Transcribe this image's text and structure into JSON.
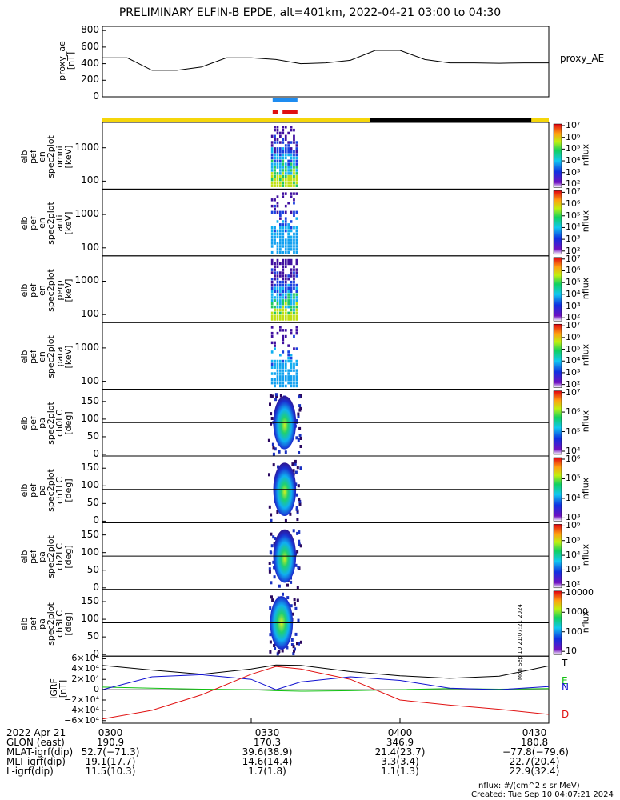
{
  "title": "PRELIMINARY ELFIN-B EPDE, alt=401km, 2022-04-21 03:00 to 04:30",
  "colors": {
    "yellow": "#f5d60a",
    "black": "#000000",
    "blue_bar": "#1e8cf0",
    "red_bar": "#e01010",
    "bx": "#000000",
    "by": "#1010d0",
    "bz": "#10c010",
    "bd": "#e01010"
  },
  "ae_panel": {
    "ylabel": "proxy_ae\n[nT]",
    "yticks": [
      "800",
      "600",
      "400",
      "200",
      "0"
    ],
    "series_label": "proxy_AE"
  },
  "spec_panels": [
    {
      "ylabel": "elb\npef\nen\nspec2plot\nomni\n[keV]",
      "yticks": [
        "1000",
        "100"
      ],
      "cb_ticks": [
        "10⁷",
        "10⁶",
        "10⁵",
        "10⁴",
        "10³",
        "10²"
      ],
      "cb_label": "nflux"
    },
    {
      "ylabel": "elb\npef\nen\nspec2plot\nanti\n[keV]",
      "yticks": [
        "1000",
        "100"
      ],
      "cb_ticks": [
        "10⁷",
        "10⁶",
        "10⁵",
        "10⁴",
        "10³",
        "10²"
      ],
      "cb_label": "nflux"
    },
    {
      "ylabel": "elb\npef\nen\nspec2plot\nperp\n[keV]",
      "yticks": [
        "1000",
        "100"
      ],
      "cb_ticks": [
        "10⁷",
        "10⁶",
        "10⁵",
        "10⁴",
        "10³",
        "10²"
      ],
      "cb_label": "nflux"
    },
    {
      "ylabel": "elb\npef\nen\nspec2plot\npara\n[keV]",
      "yticks": [
        "1000",
        "100"
      ],
      "cb_ticks": [
        "10⁷",
        "10⁶",
        "10⁵",
        "10⁴",
        "10³",
        "10²"
      ],
      "cb_label": "nflux"
    },
    {
      "ylabel": "elb\npef\npa\nspec2plot\nch0LC\n[deg]",
      "yticks": [
        "150",
        "100",
        "50",
        "0"
      ],
      "cb_ticks": [
        "10⁷",
        "10⁶",
        "10⁵",
        "10⁴"
      ],
      "cb_label": "nflux"
    },
    {
      "ylabel": "elb\npef\npa\nspec2plot\nch1LC\n[deg]",
      "yticks": [
        "150",
        "100",
        "50",
        "0"
      ],
      "cb_ticks": [
        "10⁶",
        "10⁵",
        "10⁴",
        "10³"
      ],
      "cb_label": "nflux"
    },
    {
      "ylabel": "elb\npef\npa\nspec2plot\nch2LC\n[deg]",
      "yticks": [
        "150",
        "100",
        "50",
        "0"
      ],
      "cb_ticks": [
        "10⁶",
        "10⁵",
        "10⁴",
        "10³",
        "10²"
      ],
      "cb_label": "nflux"
    },
    {
      "ylabel": "elb\npef\npa\nspec2plot\nch3LC\n[deg]",
      "yticks": [
        "150",
        "100",
        "50",
        "0"
      ],
      "cb_ticks": [
        "10000",
        "1000",
        "100",
        "10"
      ],
      "cb_label": "nflux"
    }
  ],
  "igrf_panel": {
    "ylabel": "IGRF\n[nT]",
    "yticks": [
      "6×10⁴",
      "4×10⁴",
      "2×10⁴",
      "0",
      "−2×10⁴",
      "−4×10⁴",
      "−6×10⁴"
    ],
    "legend": [
      "T",
      "E",
      "N",
      "D"
    ],
    "side_text": "Mon Sep 10 21:07:21 2024"
  },
  "time_ticks": [
    "0300",
    "0330",
    "0400",
    "0430"
  ],
  "ephemeris": [
    {
      "label": "2022 Apr 21",
      "values": [
        "0300",
        "0330",
        "0400",
        "0430"
      ]
    },
    {
      "label": "GLON (east)",
      "values": [
        "190.9",
        "170.3",
        "346.9",
        "180.8"
      ]
    },
    {
      "label": "MLAT-igrf(dip)",
      "values": [
        "52.7(−71.3)",
        "39.6(38.9)",
        "21.4(23.7)",
        "−77.8(−79.6)"
      ]
    },
    {
      "label": "MLT-igrf(dip)",
      "values": [
        "19.1(17.7)",
        "14.6(14.4)",
        "3.3(3.4)",
        "22.7(20.4)"
      ]
    },
    {
      "label": "L-igrf(dip)",
      "values": [
        "11.5(10.3)",
        "1.7(1.8)",
        "1.1(1.3)",
        "22.9(32.4)"
      ]
    }
  ],
  "footer": {
    "units": "nflux: #/(cm^2 s sr MeV)",
    "created": "Created: Tue Sep 10 04:07:21 2024"
  },
  "chart_data": {
    "type": "line",
    "title": "PRELIMINARY ELFIN-B EPDE, alt=401km, 2022-04-21 03:00 to 04:30",
    "x_range": [
      "03:00",
      "04:30"
    ],
    "proxy_ae": {
      "x_min": [
        0,
        5,
        10,
        15,
        20,
        25,
        30,
        35,
        40,
        45,
        50,
        55,
        60,
        65,
        70,
        75,
        80,
        85,
        90
      ],
      "values": [
        470,
        470,
        320,
        320,
        360,
        470,
        470,
        450,
        400,
        410,
        440,
        560,
        560,
        450,
        410,
        410,
        405,
        410,
        410
      ],
      "ylim": [
        0,
        850
      ]
    },
    "igrf": {
      "ylim": [
        -65000,
        65000
      ],
      "x_min": [
        0,
        10,
        20,
        30,
        35,
        40,
        50,
        60,
        70,
        80,
        90
      ],
      "series": [
        {
          "name": "T",
          "values": [
            47000,
            38000,
            30000,
            40000,
            48000,
            47000,
            35000,
            27000,
            22000,
            26000,
            46000
          ]
        },
        {
          "name": "E",
          "values": [
            5000,
            3000,
            1000,
            0,
            -2000,
            -3000,
            -2000,
            0,
            2000,
            1000,
            2000
          ]
        },
        {
          "name": "N",
          "values": [
            0,
            25000,
            29000,
            20000,
            0,
            15000,
            25000,
            18000,
            3000,
            0,
            6000
          ]
        },
        {
          "name": "D",
          "values": [
            -57000,
            -40000,
            -10000,
            30000,
            45000,
            40000,
            20000,
            -20000,
            -30000,
            -38000,
            -48000
          ]
        }
      ]
    },
    "science_zones": [
      {
        "start_min": 34,
        "end_min": 39,
        "color": "blue"
      },
      {
        "start_min": 34,
        "end_min": 35,
        "color": "red"
      },
      {
        "start_min": 36,
        "end_min": 39,
        "color": "red"
      }
    ],
    "sunlight_bar": [
      {
        "start_min": 0,
        "end_min": 54,
        "color": "yellow"
      },
      {
        "start_min": 54,
        "end_min": 86.5,
        "color": "black"
      },
      {
        "start_min": 86.5,
        "end_min": 90,
        "color": "yellow"
      }
    ]
  }
}
